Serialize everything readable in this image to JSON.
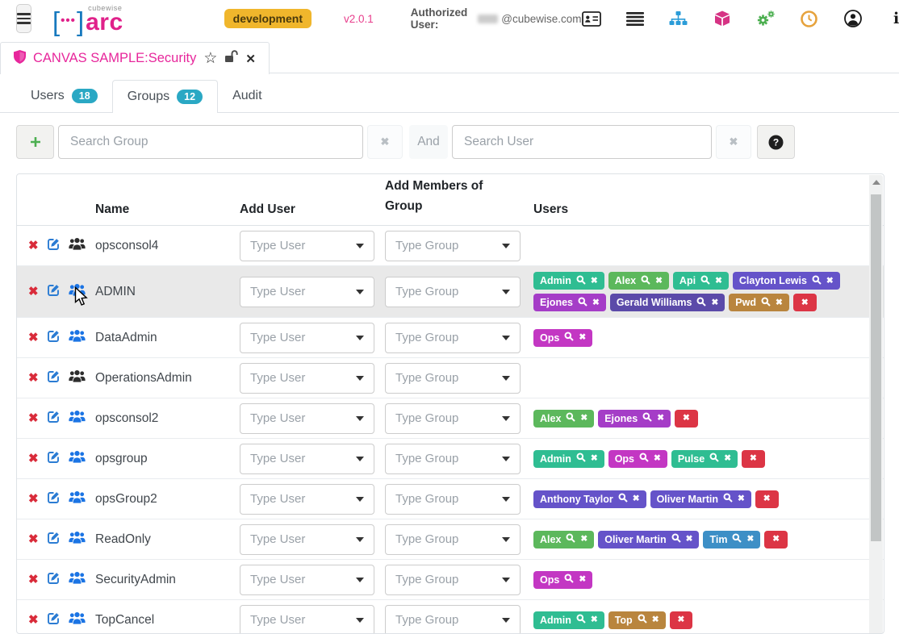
{
  "header": {
    "brand_small": "cubewise",
    "brand": "arc",
    "bracket_left": "[",
    "bracket_right": "]",
    "dots": "•••",
    "env_badge": "development",
    "version": "v2.0.1",
    "authorized_label": "Authorized User:",
    "authorized_domain": "@cubewise.com",
    "icon_names": [
      "id-card",
      "list",
      "sitemap",
      "cube",
      "gears",
      "clock",
      "user",
      "info"
    ]
  },
  "doc_tab": {
    "title": "CANVAS SAMPLE:Security"
  },
  "nav_tabs": {
    "users": {
      "label": "Users",
      "count": "18"
    },
    "groups": {
      "label": "Groups",
      "count": "12"
    },
    "audit": {
      "label": "Audit"
    }
  },
  "search": {
    "group_placeholder": "Search Group",
    "and_label": "And",
    "user_placeholder": "Search User"
  },
  "table": {
    "columns": {
      "name": "Name",
      "add_user": "Add User",
      "add_members": "Add Members of Group",
      "users": "Users"
    },
    "select_user_placeholder": "Type User",
    "select_group_placeholder": "Type Group",
    "rows": [
      {
        "name": "opsconsol4",
        "icon": "black",
        "highlight": false,
        "remove_all": false,
        "users": []
      },
      {
        "name": "ADMIN",
        "icon": "blue",
        "highlight": true,
        "remove_all": true,
        "users": [
          {
            "label": "Admin",
            "color": "emerald"
          },
          {
            "label": "Alex",
            "color": "green"
          },
          {
            "label": "Api",
            "color": "emerald"
          },
          {
            "label": "Clayton Lewis",
            "color": "indigo"
          },
          {
            "label": "Ejones",
            "color": "violet"
          },
          {
            "label": "Gerald Williams",
            "color": "deep_indigo"
          },
          {
            "label": "Pwd",
            "color": "bronze"
          }
        ]
      },
      {
        "name": "DataAdmin",
        "icon": "blue",
        "highlight": false,
        "remove_all": false,
        "users": [
          {
            "label": "Ops",
            "color": "magenta"
          }
        ]
      },
      {
        "name": "OperationsAdmin",
        "icon": "black",
        "highlight": false,
        "remove_all": false,
        "users": []
      },
      {
        "name": "opsconsol2",
        "icon": "blue",
        "highlight": false,
        "remove_all": true,
        "users": [
          {
            "label": "Alex",
            "color": "green"
          },
          {
            "label": "Ejones",
            "color": "violet"
          }
        ]
      },
      {
        "name": "opsgroup",
        "icon": "blue",
        "highlight": false,
        "remove_all": true,
        "users": [
          {
            "label": "Admin",
            "color": "emerald"
          },
          {
            "label": "Ops",
            "color": "magenta"
          },
          {
            "label": "Pulse",
            "color": "emerald"
          }
        ]
      },
      {
        "name": "opsGroup2",
        "icon": "blue",
        "highlight": false,
        "remove_all": true,
        "users": [
          {
            "label": "Anthony Taylor",
            "color": "indigo"
          },
          {
            "label": "Oliver Martin",
            "color": "indigo"
          }
        ]
      },
      {
        "name": "ReadOnly",
        "icon": "blue",
        "highlight": false,
        "remove_all": true,
        "users": [
          {
            "label": "Alex",
            "color": "green"
          },
          {
            "label": "Oliver Martin",
            "color": "indigo"
          },
          {
            "label": "Tim",
            "color": "blue"
          }
        ]
      },
      {
        "name": "SecurityAdmin",
        "icon": "blue",
        "highlight": false,
        "remove_all": false,
        "users": [
          {
            "label": "Ops",
            "color": "magenta"
          }
        ]
      },
      {
        "name": "TopCancel",
        "icon": "blue",
        "highlight": false,
        "remove_all": true,
        "users": [
          {
            "label": "Admin",
            "color": "emerald"
          },
          {
            "label": "Top",
            "color": "bronze"
          }
        ]
      }
    ]
  },
  "colors": {
    "brand_pink": "#e0218a",
    "badge_amber": "#f0b62c",
    "tab_count_teal": "#2aa8c4",
    "delete_red": "#d92b3a",
    "icon_black": "#2d2d2d",
    "icon_blue": "#1b74e4",
    "tag_colors": {
      "emerald": "#2fbd92",
      "green": "#5cb85c",
      "indigo": "#6553c9",
      "deep_indigo": "#5b4aa9",
      "violet": "#a53dc7",
      "magenta": "#c337c3",
      "bronze": "#b9853e",
      "blue": "#3d8fc6",
      "red": "#dc3545"
    }
  }
}
